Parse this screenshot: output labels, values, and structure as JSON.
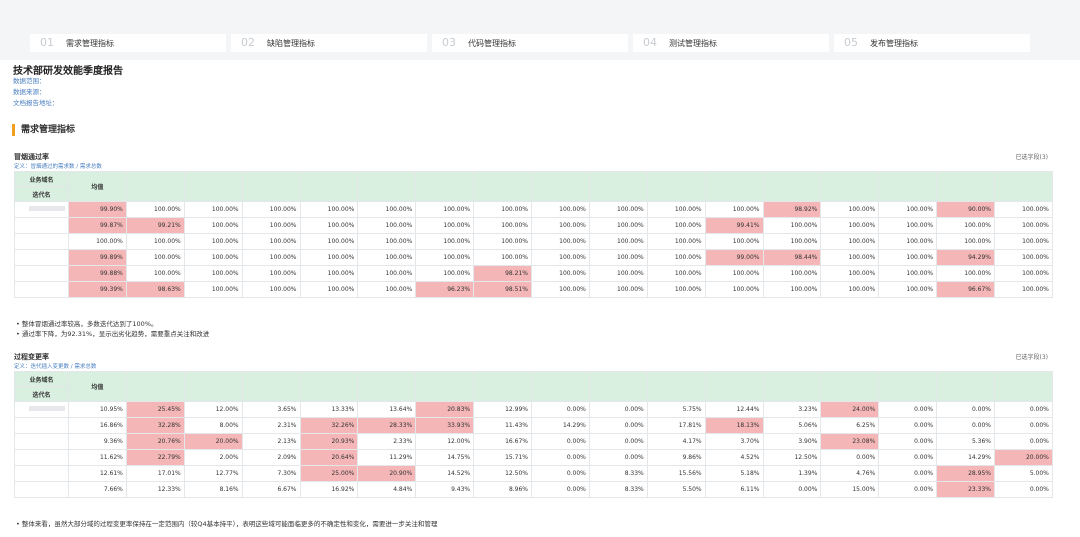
{
  "tabs": [
    {
      "num": "01",
      "label": "需求管理指标"
    },
    {
      "num": "02",
      "label": "缺陷管理指标"
    },
    {
      "num": "03",
      "label": "代码管理指标"
    },
    {
      "num": "04",
      "label": "测试管理指标"
    },
    {
      "num": "05",
      "label": "发布管理指标"
    }
  ],
  "report": {
    "title": "技术部研发效能季度报告",
    "fields": [
      "数据范围：",
      "数据来源：",
      "文档报告地址："
    ]
  },
  "section": "需求管理指标",
  "tables": [
    {
      "title": "冒烟通过率",
      "definition": "定义：冒烟通过的需求数 / 需求总数",
      "selector": "已选字段(3)",
      "header": {
        "domain": "业务域名",
        "iteration": "迭代名",
        "mean": "均值"
      },
      "rows": [
        {
          "cells": [
            "99.90%",
            "100.00%",
            "100.00%",
            "100.00%",
            "100.00%",
            "100.00%",
            "100.00%",
            "100.00%",
            "100.00%",
            "100.00%",
            "100.00%",
            "100.00%",
            "98.92%",
            "100.00%",
            "100.00%",
            "90.00%",
            "100.00%"
          ],
          "flagged": [
            0,
            12,
            15
          ]
        },
        {
          "cells": [
            "99.87%",
            "99.21%",
            "100.00%",
            "100.00%",
            "100.00%",
            "100.00%",
            "100.00%",
            "100.00%",
            "100.00%",
            "100.00%",
            "100.00%",
            "99.41%",
            "100.00%",
            "100.00%",
            "100.00%",
            "100.00%",
            "100.00%"
          ],
          "flagged": [
            0,
            1,
            11
          ]
        },
        {
          "cells": [
            "100.00%",
            "100.00%",
            "100.00%",
            "100.00%",
            "100.00%",
            "100.00%",
            "100.00%",
            "100.00%",
            "100.00%",
            "100.00%",
            "100.00%",
            "100.00%",
            "100.00%",
            "100.00%",
            "100.00%",
            "100.00%",
            "100.00%"
          ],
          "flagged": []
        },
        {
          "cells": [
            "99.89%",
            "100.00%",
            "100.00%",
            "100.00%",
            "100.00%",
            "100.00%",
            "100.00%",
            "100.00%",
            "100.00%",
            "100.00%",
            "100.00%",
            "99.00%",
            "98.44%",
            "100.00%",
            "100.00%",
            "94.29%",
            "100.00%"
          ],
          "flagged": [
            0,
            11,
            12,
            15
          ]
        },
        {
          "cells": [
            "99.88%",
            "100.00%",
            "100.00%",
            "100.00%",
            "100.00%",
            "100.00%",
            "100.00%",
            "98.21%",
            "100.00%",
            "100.00%",
            "100.00%",
            "100.00%",
            "100.00%",
            "100.00%",
            "100.00%",
            "100.00%",
            "100.00%"
          ],
          "flagged": [
            0,
            7
          ]
        },
        {
          "cells": [
            "99.39%",
            "98.63%",
            "100.00%",
            "100.00%",
            "100.00%",
            "100.00%",
            "96.23%",
            "98.51%",
            "100.00%",
            "100.00%",
            "100.00%",
            "100.00%",
            "100.00%",
            "100.00%",
            "100.00%",
            "96.67%",
            "100.00%"
          ],
          "flagged": [
            0,
            1,
            6,
            7,
            15
          ]
        }
      ],
      "notes": [
        "整体冒烟通过率较高，多数迭代达到了100%。",
        "通过率下降，为92.31%，显示出劣化趋势，需要重点关注和改进"
      ]
    },
    {
      "title": "过程变更率",
      "definition": "定义：迭代插入变更数 / 需求总数",
      "selector": "已选字段(3)",
      "header": {
        "domain": "业务域名",
        "iteration": "迭代名",
        "mean": "均值"
      },
      "rows": [
        {
          "cells": [
            "10.95%",
            "25.45%",
            "12.00%",
            "3.65%",
            "13.33%",
            "13.64%",
            "20.83%",
            "12.99%",
            "0.00%",
            "0.00%",
            "5.75%",
            "12.44%",
            "3.23%",
            "24.00%",
            "0.00%",
            "0.00%",
            "0.00%"
          ],
          "flagged": [
            1,
            6,
            13
          ]
        },
        {
          "cells": [
            "16.86%",
            "32.28%",
            "8.00%",
            "2.31%",
            "32.26%",
            "28.33%",
            "33.93%",
            "11.43%",
            "14.29%",
            "0.00%",
            "17.81%",
            "18.13%",
            "5.06%",
            "6.25%",
            "0.00%",
            "0.00%",
            "0.00%"
          ],
          "flagged": [
            1,
            4,
            5,
            6,
            11
          ]
        },
        {
          "cells": [
            "9.36%",
            "20.76%",
            "20.00%",
            "2.13%",
            "20.93%",
            "2.33%",
            "12.00%",
            "16.67%",
            "0.00%",
            "0.00%",
            "4.17%",
            "3.70%",
            "3.90%",
            "23.08%",
            "0.00%",
            "5.36%",
            "0.00%"
          ],
          "flagged": [
            1,
            2,
            4,
            13
          ]
        },
        {
          "cells": [
            "11.62%",
            "22.79%",
            "2.00%",
            "2.09%",
            "20.64%",
            "11.29%",
            "14.75%",
            "15.71%",
            "0.00%",
            "0.00%",
            "9.86%",
            "4.52%",
            "12.50%",
            "0.00%",
            "0.00%",
            "14.29%",
            "20.00%"
          ],
          "flagged": [
            1,
            4,
            16
          ]
        },
        {
          "cells": [
            "12.61%",
            "17.01%",
            "12.77%",
            "7.30%",
            "25.00%",
            "20.90%",
            "14.52%",
            "12.50%",
            "0.00%",
            "8.33%",
            "15.56%",
            "5.18%",
            "1.39%",
            "4.76%",
            "0.00%",
            "28.95%",
            "5.00%"
          ],
          "flagged": [
            4,
            5,
            15
          ]
        },
        {
          "cells": [
            "7.66%",
            "12.33%",
            "8.16%",
            "6.67%",
            "16.92%",
            "4.84%",
            "9.43%",
            "8.96%",
            "0.00%",
            "8.33%",
            "5.50%",
            "6.11%",
            "0.00%",
            "15.00%",
            "0.00%",
            "23.33%",
            "0.00%"
          ],
          "flagged": [
            15
          ]
        }
      ],
      "notes": [
        "整体来看，虽然大部分域的过程变更率保持在一定范围内（较Q4基本持平），表明这些域可能面临更多的不确定性和变化，需要进一步关注和管理"
      ]
    }
  ]
}
